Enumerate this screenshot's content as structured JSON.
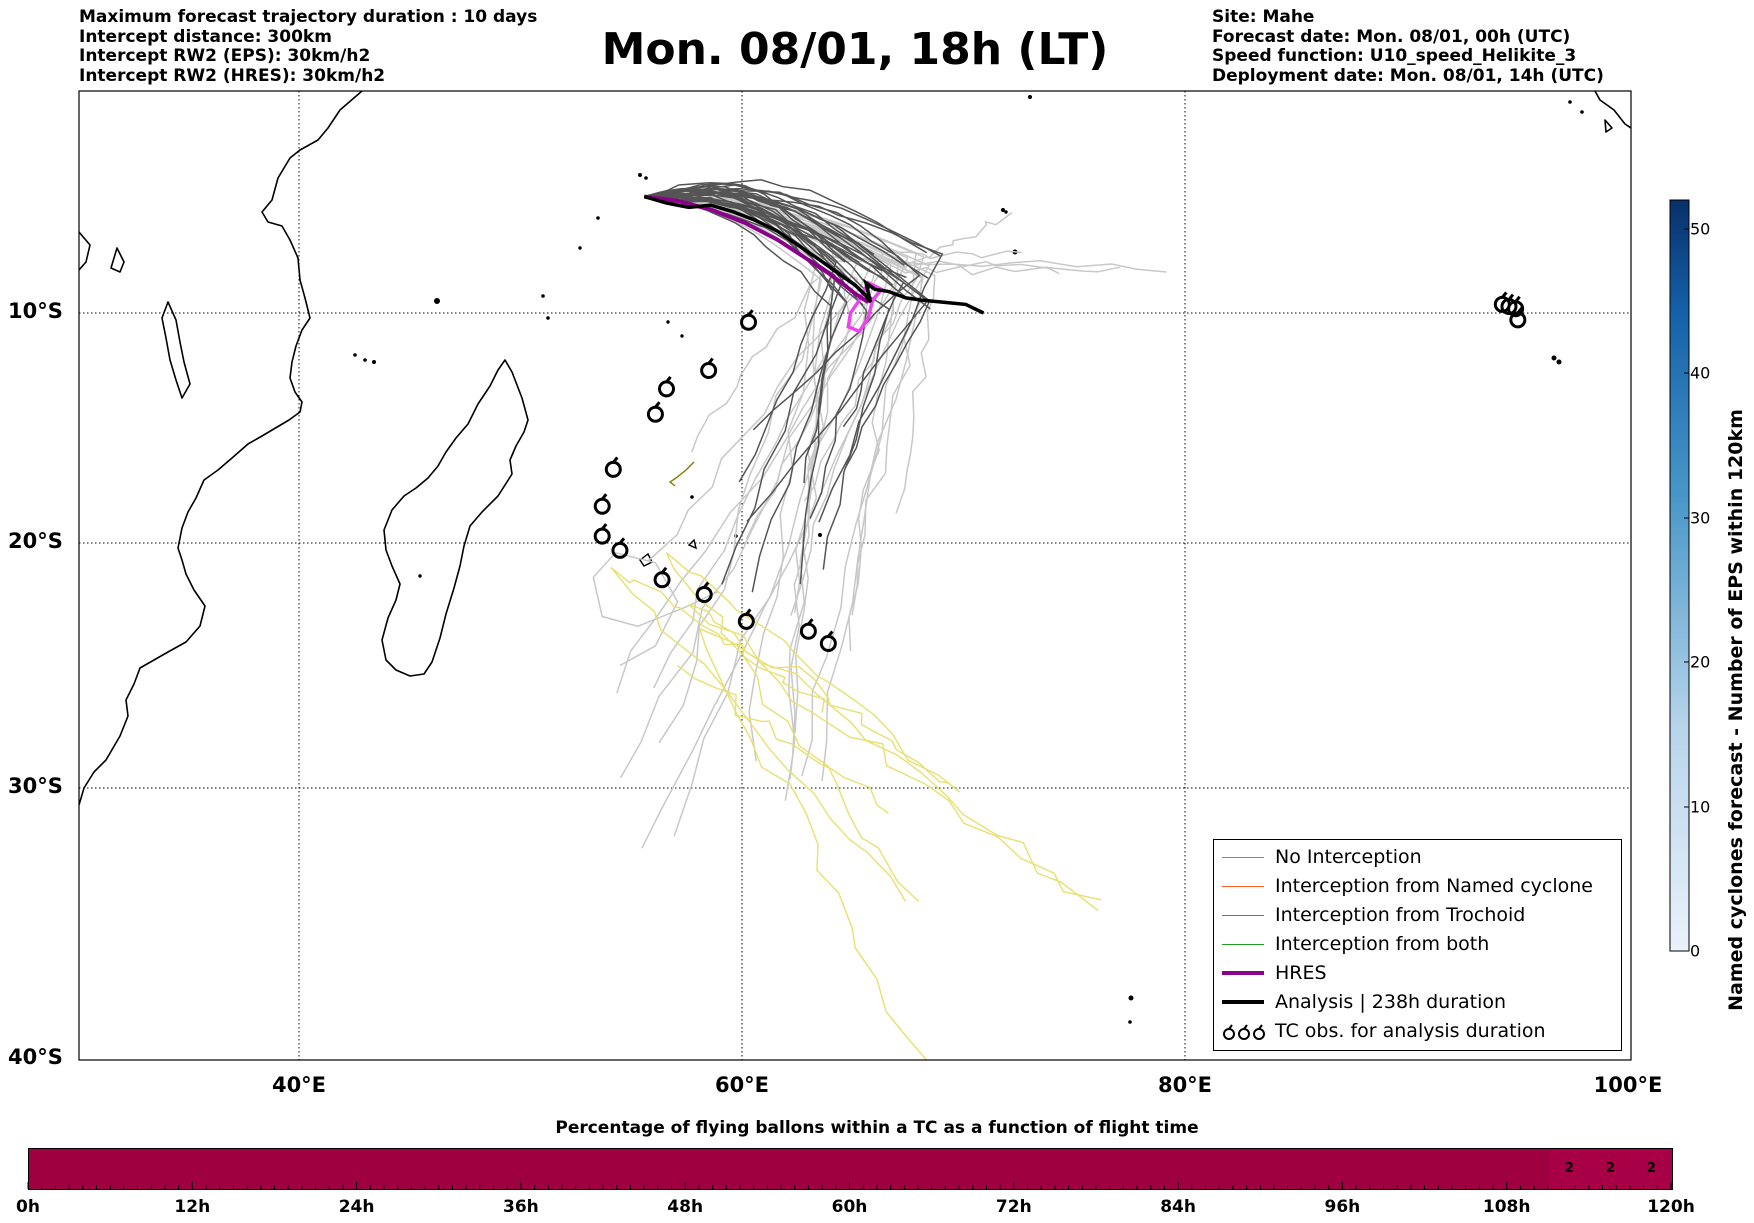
{
  "header_left": [
    "Maximum forecast trajectory duration : 10 days",
    "Intercept distance: 300km",
    "Intercept RW2 (EPS):  30km/h2",
    "Intercept RW2 (HRES): 30km/h2"
  ],
  "title": "Mon. 08/01, 18h (LT)",
  "header_right": [
    "Site: Mahe",
    "Forecast date: Mon. 08/01, 00h (UTC)",
    "Speed function: U10_speed_Helikite_3",
    "Deployment date: Mon. 08/01, 14h (UTC)"
  ],
  "map": {
    "lat_labels": [
      "10°S",
      "20°S",
      "30°S",
      "40°S"
    ],
    "lon_labels": [
      "40°E",
      "60°E",
      "80°E",
      "100°E"
    ],
    "extent": {
      "lon_min": 30,
      "lon_max": 100,
      "lat_max": 0.3,
      "lat_min": -40
    },
    "deployment_site": {
      "name": "Mahe",
      "lon": 55.5,
      "lat": -4.6
    },
    "colors": {
      "eps_dark": "#555555",
      "eps_light": "#c8c8c8",
      "trochoid": "#e8e070",
      "hres": "#8b008b",
      "hres_intercept": "#ee44ee",
      "analysis": "#000000"
    }
  },
  "legend": [
    {
      "label": "No Interception",
      "color": "#888888",
      "width": 1.5
    },
    {
      "label": "Interception from Named cyclone",
      "color": "#ff6020",
      "width": 1.5
    },
    {
      "label": "Interception from Trochoid",
      "color": "#808000",
      "width": 1.5
    },
    {
      "label": "Interception from both",
      "color": "#229922",
      "width": 1.5
    },
    {
      "label": "HRES",
      "color": "#8b008b",
      "width": 4
    },
    {
      "label": "Analysis | 238h duration",
      "color": "#000000",
      "width": 4
    },
    {
      "label": "TC obs. for analysis duration",
      "color": "#000000",
      "icon": "cyclone-symbols"
    }
  ],
  "colorbar": {
    "label": "Named cyclones forecast - Number of EPS within 120km",
    "min": 0,
    "max": 52,
    "ticks": [
      "0",
      "10",
      "20",
      "30",
      "40",
      "50"
    ],
    "color_low": "#eaf2fb",
    "color_high": "#08306b"
  },
  "bottom_bar": {
    "title": "Percentage of flying ballons within a TC as a function of flight time",
    "tick_labels": [
      "0h",
      "12h",
      "24h",
      "36h",
      "48h",
      "60h",
      "72h",
      "84h",
      "96h",
      "108h",
      "120h"
    ],
    "max_hours": 120,
    "fill_color": "#9e0040",
    "values": [
      {
        "hour": 114,
        "label": "2"
      },
      {
        "hour": 117,
        "label": "2"
      },
      {
        "hour": 120,
        "label": "2"
      }
    ]
  },
  "tc_obs": [
    {
      "lon": 60.2,
      "lat": -10.4
    },
    {
      "lon": 58.4,
      "lat": -12.5
    },
    {
      "lon": 56.5,
      "lat": -13.3
    },
    {
      "lon": 56.0,
      "lat": -14.4
    },
    {
      "lon": 54.1,
      "lat": -16.8
    },
    {
      "lon": 53.6,
      "lat": -18.4
    },
    {
      "lon": 53.6,
      "lat": -19.7
    },
    {
      "lon": 54.4,
      "lat": -20.3
    },
    {
      "lon": 56.3,
      "lat": -21.5
    },
    {
      "lon": 58.2,
      "lat": -22.1
    },
    {
      "lon": 60.1,
      "lat": -23.2
    },
    {
      "lon": 62.9,
      "lat": -23.6
    },
    {
      "lon": 63.8,
      "lat": -24.1
    },
    {
      "lon": 94.2,
      "lat": -9.6
    },
    {
      "lon": 94.5,
      "lat": -9.7
    },
    {
      "lon": 94.8,
      "lat": -9.8
    },
    {
      "lon": 94.9,
      "lat": -10.3
    }
  ],
  "tracks": {
    "hres": [
      [
        55.5,
        -4.6
      ],
      [
        57,
        -4.8
      ],
      [
        58.5,
        -5.2
      ],
      [
        60,
        -5.8
      ],
      [
        61.5,
        -6.6
      ],
      [
        62.7,
        -7.4
      ],
      [
        63.6,
        -8.0
      ],
      [
        64.4,
        -8.6
      ],
      [
        65.0,
        -9.1
      ],
      [
        65.6,
        -9.5
      ]
    ],
    "hres_loop": [
      [
        65.2,
        -9.4
      ],
      [
        64.8,
        -10.0
      ],
      [
        64.7,
        -10.6
      ],
      [
        65.2,
        -10.8
      ],
      [
        65.6,
        -10.2
      ],
      [
        65.8,
        -9.4
      ],
      [
        66.2,
        -8.9
      ],
      [
        65.6,
        -8.6
      ],
      [
        65.2,
        -9.4
      ]
    ],
    "analysis": [
      [
        55.5,
        -4.6
      ],
      [
        56.5,
        -4.9
      ],
      [
        57.5,
        -5.1
      ],
      [
        58.5,
        -5.0
      ],
      [
        59.5,
        -5.3
      ],
      [
        60.5,
        -5.7
      ],
      [
        61.5,
        -6.2
      ],
      [
        62.5,
        -6.9
      ],
      [
        63.5,
        -7.6
      ],
      [
        64.3,
        -8.2
      ],
      [
        65.0,
        -8.7
      ],
      [
        65.5,
        -9.2
      ],
      [
        65.7,
        -9.5
      ],
      [
        65.5,
        -8.6
      ],
      [
        65.9,
        -8.9
      ],
      [
        66.5,
        -9.0
      ],
      [
        67.3,
        -9.3
      ],
      [
        68.0,
        -9.4
      ],
      [
        69.0,
        -9.5
      ],
      [
        70.0,
        -9.6
      ],
      [
        70.8,
        -10.0
      ]
    ]
  }
}
